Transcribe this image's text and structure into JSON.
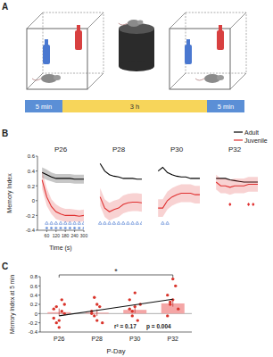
{
  "panel_labels": [
    "A",
    "B",
    "C"
  ],
  "diagram": {
    "timeline": [
      {
        "label": "5 min",
        "color": "#5b8fd6"
      },
      {
        "label": "3 h",
        "color": "#f7d55a"
      },
      {
        "label": "5 min",
        "color": "#5b8fd6"
      }
    ]
  },
  "chart_data": [
    {
      "type": "line",
      "title": "P26",
      "x": [
        30,
        60,
        90,
        120,
        150,
        180,
        210,
        240,
        270,
        300
      ],
      "xlim": [
        0,
        300
      ],
      "ylim": [
        -0.4,
        0.6
      ],
      "xticks": [
        60,
        120,
        180,
        240,
        300
      ],
      "yticks": [
        -0.4,
        -0.2,
        0,
        0.2,
        0.4,
        0.6
      ],
      "x_label": "Time (s)",
      "y_label": "Memory Index",
      "legend": "top-right",
      "series": [
        {
          "name": "Adult",
          "color": "#000000",
          "values": [
            0.38,
            0.35,
            0.32,
            0.3,
            0.3,
            0.3,
            0.3,
            0.29,
            0.29,
            0.29
          ],
          "errors": [
            0.07,
            0.07,
            0.06,
            0.06,
            0.06,
            0.06,
            0.06,
            0.06,
            0.06,
            0.06
          ]
        },
        {
          "name": "Juvenile",
          "color": "#e03030",
          "values": [
            0.28,
            0.05,
            -0.08,
            -0.15,
            -0.18,
            -0.2,
            -0.2,
            -0.2,
            -0.21,
            -0.2
          ],
          "errors": [
            0.12,
            0.12,
            0.1,
            0.1,
            0.09,
            0.09,
            0.09,
            0.08,
            0.08,
            0.08
          ]
        }
      ],
      "sig_triangles": [
        60,
        90,
        120,
        150,
        180,
        210,
        240,
        270,
        300
      ],
      "sig_stars": [
        60,
        90,
        120,
        150,
        180,
        210,
        240,
        270,
        300
      ]
    },
    {
      "type": "line",
      "title": "P28",
      "x": [
        30,
        60,
        90,
        120,
        150,
        180,
        210,
        240,
        270,
        300
      ],
      "xlim": [
        0,
        300
      ],
      "ylim": [
        -0.4,
        0.6
      ],
      "tick_labels": false,
      "series": [
        {
          "name": "Adult",
          "color": "#000000",
          "values": [
            0.5,
            0.4,
            0.35,
            0.33,
            0.32,
            0.3,
            0.3,
            0.3,
            0.29,
            0.29
          ]
        },
        {
          "name": "Juvenile",
          "color": "#e03030",
          "values": [
            0.05,
            -0.1,
            -0.15,
            -0.12,
            -0.1,
            -0.05,
            -0.03,
            -0.02,
            -0.02,
            -0.03
          ],
          "errors": [
            0.12,
            0.12,
            0.12,
            0.12,
            0.12,
            0.12,
            0.12,
            0.12,
            0.12,
            0.12
          ]
        }
      ],
      "sig_triangles": [
        30,
        60,
        90,
        120,
        150,
        180,
        210,
        240,
        270,
        300
      ]
    },
    {
      "type": "line",
      "title": "P30",
      "x": [
        30,
        60,
        90,
        120,
        150,
        180,
        210,
        240,
        270,
        300
      ],
      "xlim": [
        0,
        300
      ],
      "ylim": [
        -0.4,
        0.6
      ],
      "tick_labels": false,
      "series": [
        {
          "name": "Adult",
          "color": "#000000",
          "values": [
            0.4,
            0.45,
            0.38,
            0.35,
            0.33,
            0.32,
            0.32,
            0.3,
            0.3,
            0.3
          ]
        },
        {
          "name": "Juvenile",
          "color": "#e03030",
          "values": [
            -0.1,
            -0.1,
            0.0,
            0.05,
            0.08,
            0.1,
            0.1,
            0.1,
            0.08,
            0.08
          ],
          "errors": [
            0.12,
            0.12,
            0.12,
            0.12,
            0.12,
            0.12,
            0.12,
            0.12,
            0.12,
            0.12
          ]
        }
      ],
      "sig_triangles": [
        60,
        90
      ]
    },
    {
      "type": "line",
      "title": "P32",
      "x": [
        30,
        60,
        90,
        120,
        150,
        180,
        210,
        240,
        270,
        300
      ],
      "xlim": [
        0,
        300
      ],
      "ylim": [
        -0.4,
        0.6
      ],
      "tick_labels": false,
      "series": [
        {
          "name": "Adult",
          "color": "#000000",
          "values": [
            0.3,
            0.3,
            0.3,
            0.28,
            0.27,
            0.26,
            0.25,
            0.25,
            0.25,
            0.25
          ]
        },
        {
          "name": "Juvenile",
          "color": "#e03030",
          "values": [
            0.25,
            0.2,
            0.2,
            0.18,
            0.2,
            0.2,
            0.2,
            0.22,
            0.22,
            0.22
          ],
          "errors": [
            0.1,
            0.1,
            0.1,
            0.1,
            0.1,
            0.1,
            0.1,
            0.1,
            0.1,
            0.1
          ]
        }
      ],
      "sig_diamonds": [
        120,
        240,
        270
      ]
    },
    {
      "type": "bar",
      "categories": [
        "P26",
        "P28",
        "P30",
        "P32"
      ],
      "values": [
        0.03,
        0.02,
        0.08,
        0.22
      ],
      "errors": [
        0.08,
        0.07,
        0.07,
        0.07
      ],
      "color": "#f4a6a6",
      "points": [
        [
          0.1,
          -0.2,
          -0.3,
          0.05,
          0.2,
          -0.1,
          0.15,
          -0.15,
          0.3,
          0.0
        ],
        [
          0.05,
          -0.05,
          0.2,
          0.15,
          -0.2,
          0.0,
          0.35,
          -0.15
        ],
        [
          0.3,
          0.05,
          0.15,
          -0.15,
          0.2,
          0.1,
          -0.05,
          0.45
        ],
        [
          0.4,
          0.2,
          0.3,
          0.6,
          0.1,
          -0.05,
          0.25,
          0.75
        ]
      ],
      "trend": [
        -0.05,
        0.07,
        0.19,
        0.31
      ],
      "ylim": [
        -0.4,
        0.8
      ],
      "yticks": [
        -0.4,
        -0.2,
        0,
        0.2,
        0.4,
        0.6,
        0.8
      ],
      "x_label": "P-Day",
      "y_label": "Memory Index at 5 min",
      "annotations": [
        "r² = 0.17",
        "p = 0.004"
      ],
      "significance": {
        "label": "*",
        "from": 0,
        "to": 3
      }
    }
  ]
}
